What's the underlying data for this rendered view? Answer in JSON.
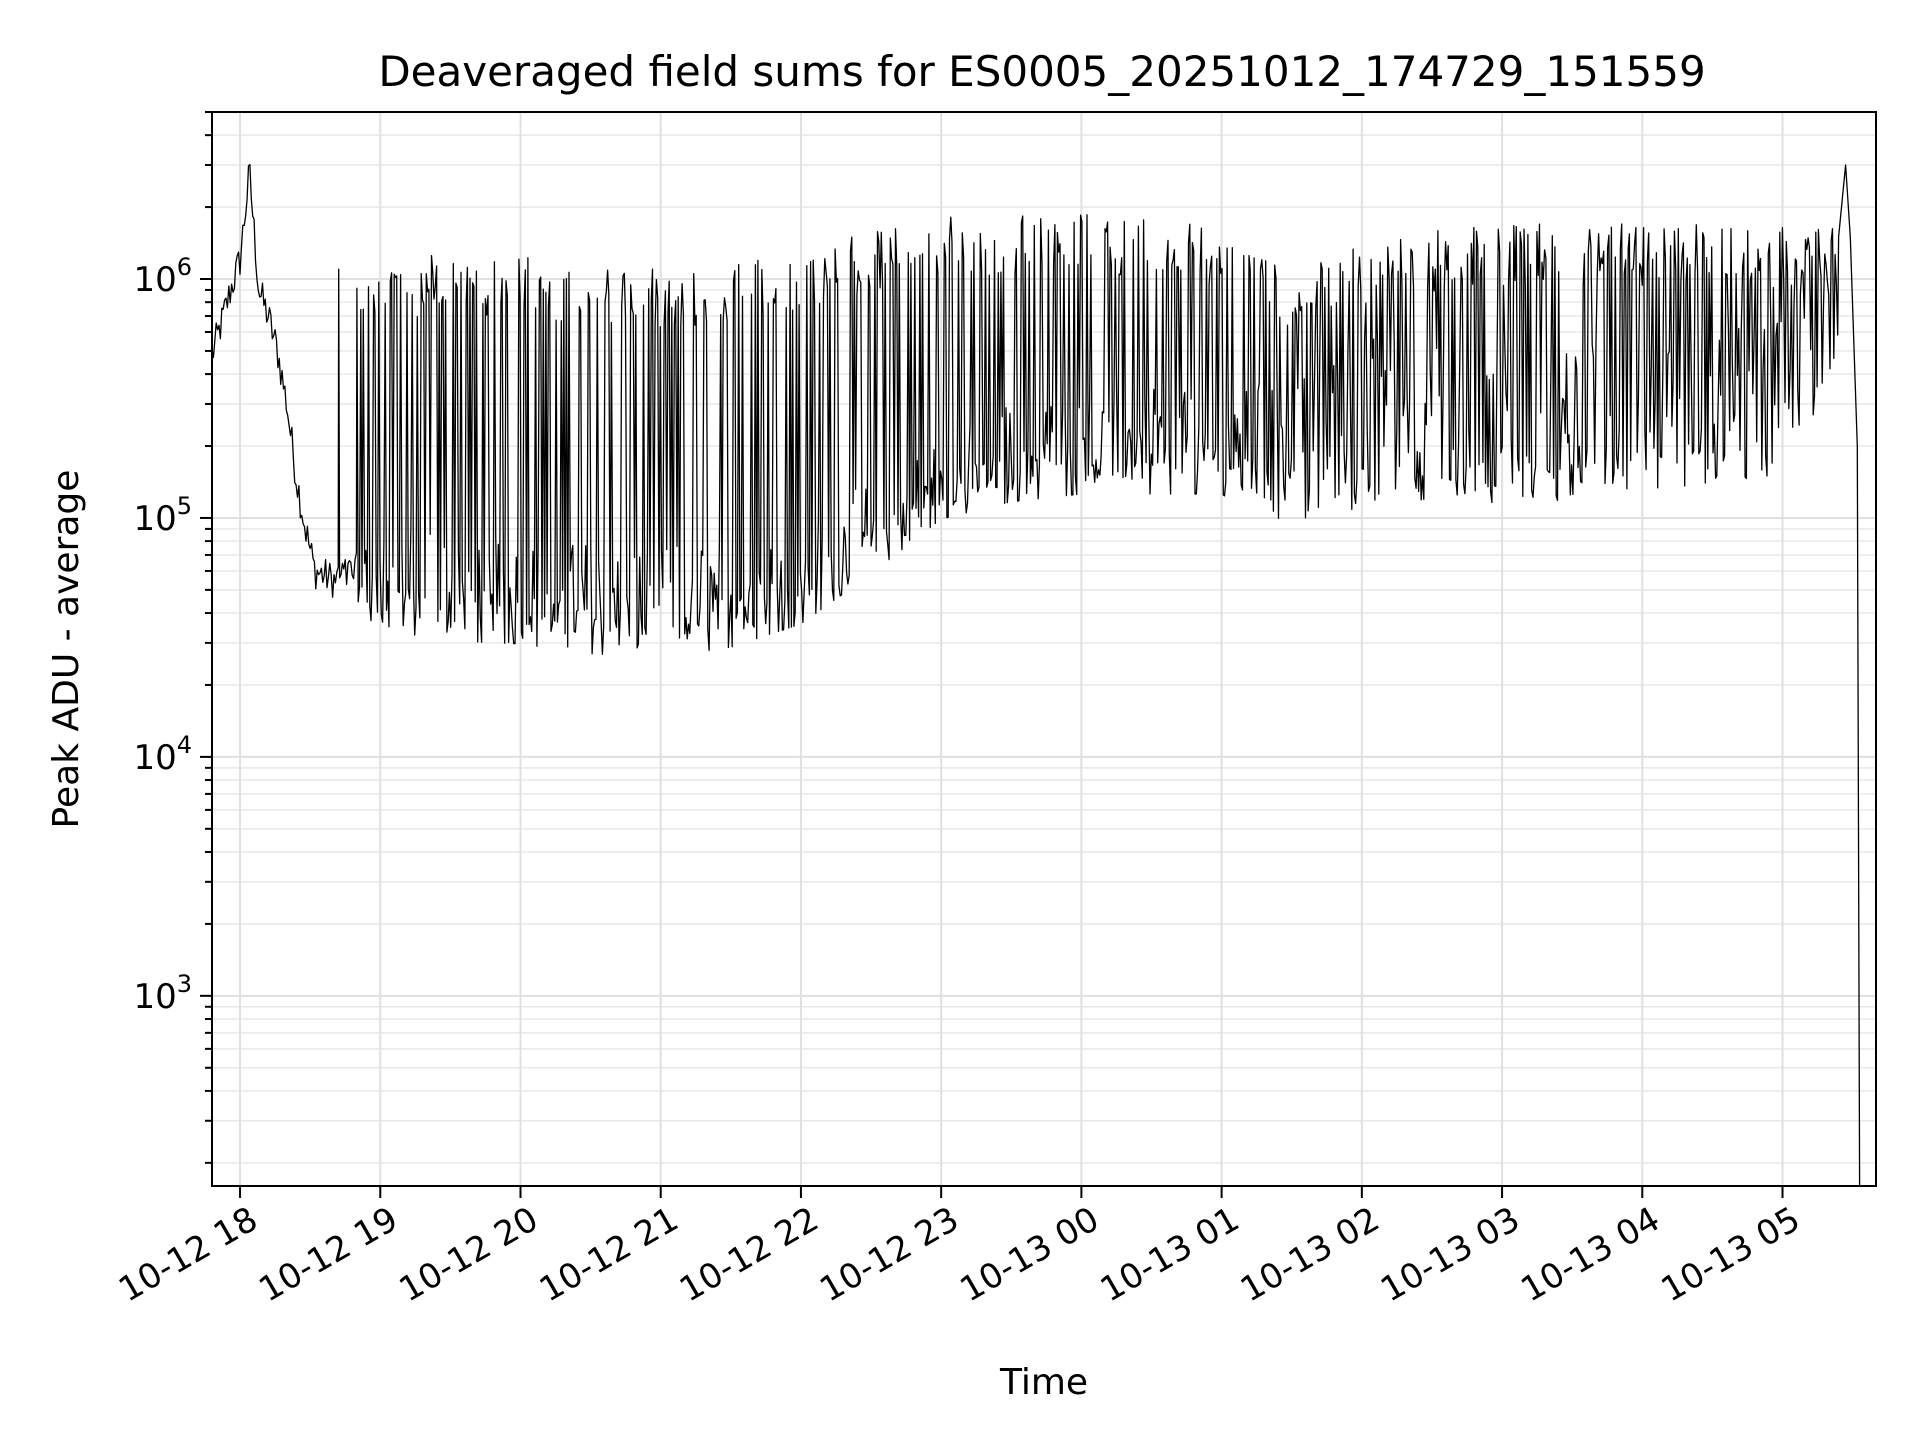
{
  "chart_data": {
    "type": "line",
    "title": "Deaveraged field sums for ES0005_20251012_174729_151559",
    "xlabel": "Time",
    "ylabel": "Peak ADU - average",
    "yscale": "log",
    "ylim": [
      160,
      5000000
    ],
    "xlim": [
      "2025-10-12 17:48",
      "2025-10-13 05:40"
    ],
    "grid": true,
    "x_ticks": [
      "10-12 18",
      "10-12 19",
      "10-12 20",
      "10-12 21",
      "10-12 22",
      "10-12 23",
      "10-13 00",
      "10-13 01",
      "10-13 02",
      "10-13 03",
      "10-13 04",
      "10-13 05"
    ],
    "y_ticks": [
      {
        "base": "10",
        "exp": "3",
        "value": 1000
      },
      {
        "base": "10",
        "exp": "4",
        "value": 10000
      },
      {
        "base": "10",
        "exp": "5",
        "value": 100000
      },
      {
        "base": "10",
        "exp": "6",
        "value": 1000000
      }
    ],
    "series": [
      {
        "color": "#000000",
        "points": [
          [
            "2025-10-12 17:48",
            480000
          ],
          [
            "2025-10-12 17:52",
            650000
          ],
          [
            "2025-10-12 17:56",
            900000
          ],
          [
            "2025-10-12 18:00",
            1200000
          ],
          [
            "2025-10-12 18:04",
            2800000
          ],
          [
            "2025-10-12 18:08",
            900000
          ],
          [
            "2025-10-12 18:12",
            700000
          ],
          [
            "2025-10-12 18:16",
            500000
          ],
          [
            "2025-10-12 18:20",
            300000
          ],
          [
            "2025-10-12 18:24",
            150000
          ],
          [
            "2025-10-12 18:28",
            90000
          ],
          [
            "2025-10-12 18:32",
            60000
          ],
          [
            "2025-10-12 18:40",
            55000
          ],
          [
            "2025-10-12 18:50",
            60000
          ],
          [
            "2025-10-12 19:00",
            58000
          ],
          [
            "2025-10-12 19:30",
            50000
          ],
          [
            "2025-10-12 20:00",
            45000
          ],
          [
            "2025-10-12 20:30",
            44000
          ],
          [
            "2025-10-12 21:00",
            42000
          ],
          [
            "2025-10-12 21:30",
            45000
          ],
          [
            "2025-10-12 22:00",
            52000
          ],
          [
            "2025-10-12 22:30",
            80000
          ],
          [
            "2025-10-12 23:00",
            120000
          ],
          [
            "2025-10-12 23:30",
            170000
          ],
          [
            "2025-10-13 00:00",
            180000
          ],
          [
            "2025-10-13 00:30",
            190000
          ],
          [
            "2025-10-13 01:00",
            180000
          ],
          [
            "2025-10-13 01:30",
            230000
          ],
          [
            "2025-10-13 02:00",
            320000
          ],
          [
            "2025-10-13 02:30",
            310000
          ],
          [
            "2025-10-13 03:00",
            300000
          ],
          [
            "2025-10-13 03:30",
            300000
          ],
          [
            "2025-10-13 04:00",
            320000
          ],
          [
            "2025-10-13 04:30",
            340000
          ],
          [
            "2025-10-13 05:00",
            380000
          ],
          [
            "2025-10-13 05:24",
            1500000
          ],
          [
            "2025-10-13 05:27",
            3000000
          ],
          [
            "2025-10-13 05:29",
            1500000
          ],
          [
            "2025-10-13 05:32",
            200000
          ],
          [
            "2025-10-13 05:33",
            160
          ]
        ],
        "upper_envelope": [
          [
            "2025-10-12 18:50",
            1100000
          ],
          [
            "2025-10-12 19:00",
            1200000
          ],
          [
            "2025-10-12 19:30",
            1300000
          ],
          [
            "2025-10-12 20:00",
            1250000
          ],
          [
            "2025-10-12 20:30",
            1150000
          ],
          [
            "2025-10-12 21:00",
            1100000
          ],
          [
            "2025-10-12 21:30",
            1150000
          ],
          [
            "2025-10-12 22:00",
            1300000
          ],
          [
            "2025-10-12 22:30",
            1600000
          ],
          [
            "2025-10-12 23:00",
            1850000
          ],
          [
            "2025-10-12 23:30",
            1850000
          ],
          [
            "2025-10-13 00:00",
            1900000
          ],
          [
            "2025-10-13 00:30",
            1850000
          ],
          [
            "2025-10-13 01:00",
            1700000
          ],
          [
            "2025-10-13 01:30",
            1100000
          ],
          [
            "2025-10-13 02:00",
            1400000
          ],
          [
            "2025-10-13 02:30",
            1600000
          ],
          [
            "2025-10-13 03:00",
            1700000
          ],
          [
            "2025-10-13 03:30",
            1700000
          ],
          [
            "2025-10-13 04:00",
            1700000
          ],
          [
            "2025-10-13 04:30",
            1700000
          ],
          [
            "2025-10-13 05:00",
            1650000
          ],
          [
            "2025-10-13 05:24",
            1700000
          ]
        ],
        "lower_envelope": [
          [
            "2025-10-12 18:50",
            40000
          ],
          [
            "2025-10-12 19:00",
            38000
          ],
          [
            "2025-10-12 19:30",
            34000
          ],
          [
            "2025-10-12 20:00",
            33000
          ],
          [
            "2025-10-12 20:30",
            30000
          ],
          [
            "2025-10-12 21:00",
            29000
          ],
          [
            "2025-10-12 21:30",
            32000
          ],
          [
            "2025-10-12 22:00",
            40000
          ],
          [
            "2025-10-12 22:30",
            65000
          ],
          [
            "2025-10-12 23:00",
            110000
          ],
          [
            "2025-10-12 23:30",
            130000
          ],
          [
            "2025-10-13 00:00",
            140000
          ],
          [
            "2025-10-13 00:30",
            140000
          ],
          [
            "2025-10-13 01:00",
            140000
          ],
          [
            "2025-10-13 01:30",
            90000
          ],
          [
            "2025-10-13 02:00",
            110000
          ],
          [
            "2025-10-13 02:30",
            120000
          ],
          [
            "2025-10-13 03:00",
            110000
          ],
          [
            "2025-10-13 03:30",
            120000
          ],
          [
            "2025-10-13 04:00",
            130000
          ],
          [
            "2025-10-13 04:30",
            130000
          ],
          [
            "2025-10-13 05:00",
            150000
          ],
          [
            "2025-10-13 05:24",
            400000
          ]
        ]
      }
    ]
  }
}
